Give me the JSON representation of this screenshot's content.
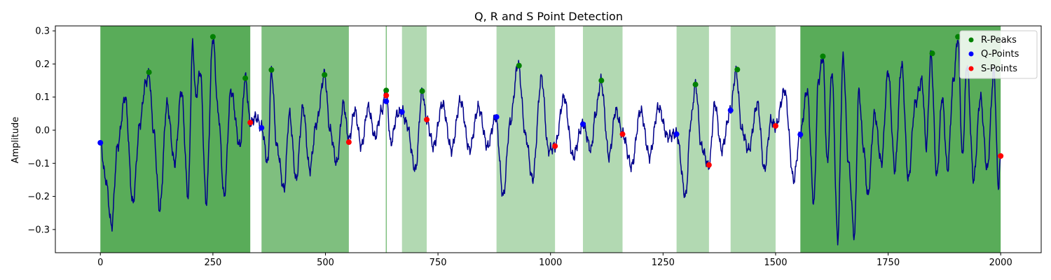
{
  "chart_data": {
    "type": "line",
    "title": "Q, R and S Point Detection",
    "xlabel": "",
    "ylabel": "Amplitude",
    "xlim": [
      -100,
      2090
    ],
    "ylim": [
      -0.37,
      0.315
    ],
    "x_ticks": [
      0,
      250,
      500,
      750,
      1000,
      1250,
      1500,
      1750,
      2000
    ],
    "x_tick_labels": [
      "0",
      "250",
      "500",
      "750",
      "1000",
      "1250",
      "1500",
      "1750",
      "2000"
    ],
    "y_ticks": [
      0.3,
      0.2,
      0.1,
      0.0,
      -0.1,
      -0.2,
      -0.3
    ],
    "y_tick_labels": [
      "0.3",
      "0.2",
      "0.1",
      "0.0",
      "−0.1",
      "−0.2",
      "−0.3"
    ],
    "grid": false,
    "legend_position": "top-right",
    "colors": {
      "signal": "#00008b",
      "r_peaks": "#008000",
      "q_points": "#0000ff",
      "s_points": "#ff0000",
      "shade": "#008000"
    },
    "signal_key_points": {
      "x": [
        0,
        12,
        25,
        38,
        55,
        72,
        88,
        100,
        108,
        118,
        132,
        148,
        165,
        180,
        195,
        205,
        212,
        222,
        235,
        250,
        262,
        275,
        290,
        310,
        322,
        333,
        345,
        358,
        372,
        380,
        392,
        408,
        420,
        435,
        450,
        465,
        480,
        498,
        510,
        525,
        540,
        552,
        565,
        580,
        595,
        610,
        625,
        635,
        645,
        660,
        670,
        680,
        700,
        715,
        725,
        740,
        760,
        780,
        800,
        820,
        840,
        860,
        878,
        895,
        910,
        928,
        945,
        960,
        980,
        995,
        1010,
        1030,
        1050,
        1072,
        1090,
        1100,
        1112,
        1130,
        1145,
        1160,
        1180,
        1200,
        1220,
        1240,
        1260,
        1280,
        1300,
        1312,
        1322,
        1335,
        1352,
        1365,
        1380,
        1400,
        1412,
        1425,
        1440,
        1460,
        1475,
        1490,
        1500,
        1520,
        1540,
        1555,
        1570,
        1585,
        1595,
        1605,
        1615,
        1625,
        1638,
        1650,
        1662,
        1675,
        1685,
        1695,
        1705,
        1720,
        1735,
        1750,
        1765,
        1780,
        1795,
        1810,
        1825,
        1835,
        1845,
        1858,
        1870,
        1882,
        1895,
        1905,
        1915,
        1925,
        1940,
        1955,
        1970,
        1985,
        1995,
        2000
      ],
      "y": [
        -0.04,
        -0.15,
        -0.29,
        -0.05,
        0.1,
        -0.22,
        0.02,
        0.14,
        0.17,
        0.0,
        -0.24,
        0.08,
        -0.1,
        0.12,
        -0.2,
        0.26,
        0.1,
        0.18,
        -0.22,
        0.28,
        0.05,
        -0.2,
        0.12,
        -0.05,
        0.16,
        0.02,
        0.04,
        0.01,
        -0.1,
        0.18,
        -0.05,
        -0.18,
        0.05,
        -0.15,
        0.07,
        -0.12,
        0.02,
        0.17,
        0.0,
        -0.1,
        0.08,
        -0.03,
        0.06,
        -0.05,
        0.07,
        -0.02,
        0.06,
        0.12,
        -0.04,
        0.05,
        0.06,
        0.02,
        -0.12,
        0.12,
        0.03,
        -0.05,
        0.08,
        -0.06,
        0.09,
        -0.06,
        0.07,
        -0.05,
        0.04,
        -0.2,
        0.02,
        0.2,
        -0.02,
        -0.15,
        0.16,
        -0.06,
        -0.05,
        0.1,
        -0.08,
        0.02,
        -0.06,
        0.05,
        0.15,
        -0.08,
        0.06,
        -0.01,
        -0.11,
        0.06,
        -0.08,
        0.07,
        -0.02,
        -0.01,
        -0.2,
        0.03,
        0.14,
        -0.05,
        -0.11,
        0.08,
        -0.06,
        0.06,
        0.18,
        0.0,
        -0.06,
        0.08,
        -0.12,
        0.03,
        0.01,
        0.12,
        -0.15,
        -0.01,
        0.12,
        -0.22,
        0.15,
        0.22,
        -0.1,
        0.18,
        -0.33,
        0.22,
        -0.1,
        -0.32,
        0.12,
        -0.05,
        -0.2,
        0.05,
        -0.1,
        0.18,
        -0.12,
        0.2,
        -0.15,
        0.08,
        0.15,
        -0.05,
        0.23,
        -0.14,
        0.1,
        -0.12,
        0.15,
        0.28,
        -0.08,
        0.2,
        -0.15,
        0.1,
        -0.12,
        0.18,
        -0.17,
        -0.08
      ]
    },
    "r_peaks": {
      "name": "R-Peaks",
      "x": [
        108,
        250,
        322,
        380,
        498,
        635,
        715,
        930,
        1113,
        1322,
        1415,
        1605,
        1848,
        1905
      ],
      "y": [
        0.175,
        0.282,
        0.157,
        0.182,
        0.167,
        0.12,
        0.118,
        0.195,
        0.15,
        0.138,
        0.183,
        0.223,
        0.232,
        0.282
      ]
    },
    "q_points": {
      "name": "Q-Points",
      "x": [
        0,
        358,
        635,
        670,
        880,
        1072,
        1280,
        1400,
        1555
      ],
      "y": [
        -0.038,
        0.007,
        0.087,
        0.055,
        0.04,
        0.018,
        -0.012,
        0.06,
        -0.013
      ]
    },
    "s_points": {
      "name": "S-Points",
      "x": [
        333,
        552,
        635,
        725,
        1010,
        1160,
        1352,
        1500,
        2000
      ],
      "y": [
        0.023,
        -0.036,
        0.105,
        0.032,
        -0.048,
        -0.012,
        -0.105,
        0.013,
        -0.078
      ]
    },
    "shaded_regions": [
      {
        "x0": 0,
        "x1": 333,
        "alpha": 0.65
      },
      {
        "x0": 358,
        "x1": 552,
        "alpha": 0.5
      },
      {
        "x0": 634,
        "x1": 636,
        "alpha": 0.5
      },
      {
        "x0": 670,
        "x1": 725,
        "alpha": 0.3
      },
      {
        "x0": 880,
        "x1": 1010,
        "alpha": 0.3
      },
      {
        "x0": 1072,
        "x1": 1160,
        "alpha": 0.3
      },
      {
        "x0": 1280,
        "x1": 1352,
        "alpha": 0.3
      },
      {
        "x0": 1400,
        "x1": 1500,
        "alpha": 0.3
      },
      {
        "x0": 1555,
        "x1": 2000,
        "alpha": 0.65
      }
    ]
  }
}
